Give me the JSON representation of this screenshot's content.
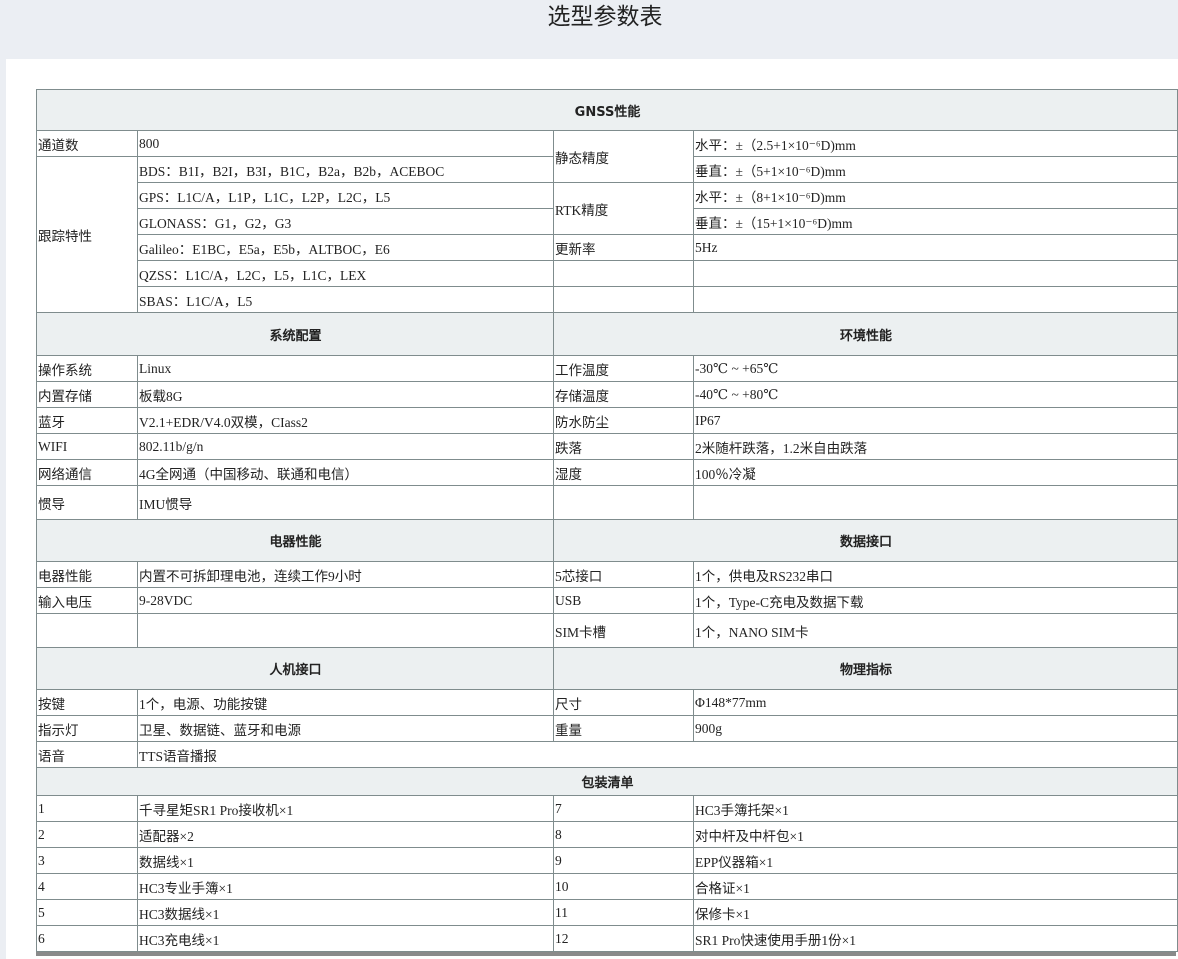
{
  "page_title": "选型参数表",
  "rows": [
    [
      {
        "t": "GNSS性能",
        "cs": 4,
        "h": 1
      }
    ],
    [
      {
        "t": "通道数"
      },
      {
        "t": "800"
      },
      {
        "t": "静态精度",
        "rs": 2
      },
      {
        "t": "水平：±（2.5+1×10⁻⁶D)mm"
      }
    ],
    [
      {
        "t": "跟踪特性",
        "rs": 6
      },
      {
        "t": "BDS：B1I，B2I，B3I，B1C，B2a，B2b，ACEBOC"
      },
      {
        "t": "垂直：±（5+1×10⁻⁶D)mm"
      }
    ],
    [
      {
        "t": "GPS：L1C/A，L1P，L1C，L2P，L2C，L5"
      },
      {
        "t": "RTK精度",
        "rs": 2
      },
      {
        "t": "水平：±（8+1×10⁻⁶D)mm"
      }
    ],
    [
      {
        "t": "GLONASS：G1，G2，G3"
      },
      {
        "t": "垂直：±（15+1×10⁻⁶D)mm"
      }
    ],
    [
      {
        "t": "Galileo：E1BC，E5a，E5b，ALTBOC，E6"
      },
      {
        "t": "更新率"
      },
      {
        "t": "5Hz"
      }
    ],
    [
      {
        "t": "QZSS：L1C/A，L2C，L5，L1C，LEX"
      },
      {
        "t": ""
      },
      {
        "t": ""
      }
    ],
    [
      {
        "t": " SBAS：L1C/A，L5"
      },
      {
        "t": ""
      },
      {
        "t": ""
      }
    ],
    [
      {
        "t": "系统配置",
        "cs": 2,
        "h": 1
      },
      {
        "t": "环境性能",
        "cs": 2,
        "h": 1
      }
    ],
    [
      {
        "t": "操作系统"
      },
      {
        "t": "Linux"
      },
      {
        "t": "工作温度"
      },
      {
        "t": "-30℃ ~ +65℃"
      }
    ],
    [
      {
        "t": "内置存储"
      },
      {
        "t": "板载8G"
      },
      {
        "t": "存储温度"
      },
      {
        "t": "-40℃ ~ +80℃"
      }
    ],
    [
      {
        "t": "蓝牙"
      },
      {
        "t": "V2.1+EDR/V4.0双模，CIass2"
      },
      {
        "t": "防水防尘"
      },
      {
        "t": "IP67"
      }
    ],
    [
      {
        "t": "WIFI"
      },
      {
        "t": "802.11b/g/n"
      },
      {
        "t": "跌落"
      },
      {
        "t": "2米随杆跌落，1.2米自由跌落"
      }
    ],
    [
      {
        "t": "网络通信"
      },
      {
        "t": "4G全网通（中国移动、联通和电信）"
      },
      {
        "t": "湿度"
      },
      {
        "t": "100％冷凝"
      }
    ],
    [
      {
        "t": "惯导"
      },
      {
        "t": "IMU惯导"
      },
      {
        "t": ""
      },
      {
        "t": ""
      }
    ],
    [
      {
        "t": "电器性能",
        "cs": 2,
        "h": 1
      },
      {
        "t": "数据接口",
        "cs": 2,
        "h": 1
      }
    ],
    [
      {
        "t": "电器性能"
      },
      {
        "t": "内置不可拆卸理电池，连续工作9小时"
      },
      {
        "t": "5芯接口"
      },
      {
        "t": "1个，供电及RS232串口"
      }
    ],
    [
      {
        "t": "输入电压"
      },
      {
        "t": "9-28VDC"
      },
      {
        "t": "USB"
      },
      {
        "t": "1个，Type-C充电及数据下载"
      }
    ],
    [
      {
        "t": ""
      },
      {
        "t": ""
      },
      {
        "t": "SIM卡槽"
      },
      {
        "t": "1个，NANO SIM卡"
      }
    ],
    [
      {
        "t": "人机接口",
        "cs": 2,
        "h": 1
      },
      {
        "t": "物理指标",
        "cs": 2,
        "h": 1
      }
    ],
    [
      {
        "t": "按键"
      },
      {
        "t": "1个，电源、功能按键"
      },
      {
        "t": "尺寸"
      },
      {
        "t": "Φ148*77mm"
      }
    ],
    [
      {
        "t": "指示灯"
      },
      {
        "t": "卫星、数据链、蓝牙和电源"
      },
      {
        "t": "重量"
      },
      {
        "t": "900g"
      }
    ],
    [
      {
        "t": "语音"
      },
      {
        "t": "TTS语音播报",
        "cs": 3
      }
    ],
    [
      {
        "t": "包装清单",
        "cs": 4,
        "h": 1
      }
    ],
    [
      {
        "t": "1"
      },
      {
        "t": "千寻星矩SR1 Pro接收机×1"
      },
      {
        "t": "7"
      },
      {
        "t": "HC3手簿托架×1"
      }
    ],
    [
      {
        "t": "2"
      },
      {
        "t": "适配器×2"
      },
      {
        "t": "8"
      },
      {
        "t": "对中杆及中杆包×1"
      }
    ],
    [
      {
        "t": "3"
      },
      {
        "t": "数据线×1"
      },
      {
        "t": "9"
      },
      {
        "t": "EPP仪器箱×1"
      }
    ],
    [
      {
        "t": "4"
      },
      {
        "t": "HC3专业手簿×1"
      },
      {
        "t": "10"
      },
      {
        "t": "合格证×1"
      }
    ],
    [
      {
        "t": "5"
      },
      {
        "t": "HC3数据线×1"
      },
      {
        "t": "11"
      },
      {
        "t": "保修卡×1"
      }
    ],
    [
      {
        "t": "6"
      },
      {
        "t": "HC3充电线×1"
      },
      {
        "t": "12"
      },
      {
        "t": "SR1 Pro快速使用手册1份×1"
      }
    ]
  ]
}
